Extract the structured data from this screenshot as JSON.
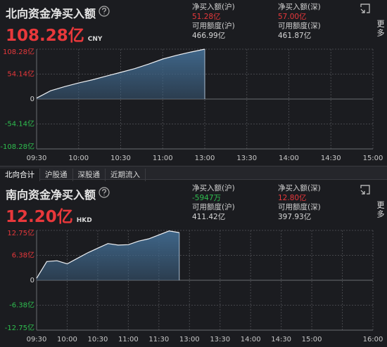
{
  "chart_data": [
    {
      "type": "area",
      "title": "北向资金净买入额",
      "total": "108.28亿",
      "currency": "CNY",
      "more": "更多",
      "stats": [
        {
          "label": "净买入额(沪)",
          "value": "51.28亿",
          "color": "#e8383b"
        },
        {
          "label": "净买入额(深)",
          "value": "57.00亿",
          "color": "#e8383b"
        },
        {
          "label": "可用额度(沪)",
          "value": "466.99亿",
          "color": "#d8d8d8"
        },
        {
          "label": "可用额度(深)",
          "value": "461.87亿",
          "color": "#d8d8d8"
        }
      ],
      "categories": [
        "09:30",
        "10:00",
        "10:30",
        "11:00",
        "13:00",
        "13:30",
        "14:00",
        "14:30",
        "15:00"
      ],
      "x": [
        "09:30",
        "09:40",
        "09:50",
        "10:00",
        "10:10",
        "10:20",
        "10:30",
        "10:40",
        "10:50",
        "11:00",
        "11:10",
        "11:20",
        "11:30"
      ],
      "values": [
        2,
        18,
        27,
        35,
        42,
        50,
        58,
        66,
        76,
        87,
        95,
        102,
        108.28
      ],
      "color": "#eef1f5",
      "fill": "#3f6689",
      "ylim": [
        -108.28,
        108.28
      ],
      "yticks": [
        {
          "value": 108.28,
          "label": "108.28亿"
        },
        {
          "value": 54.14,
          "label": "54.14亿"
        },
        0,
        {
          "value": -54.14,
          "label": "-54.14亿"
        },
        {
          "value": -108.28,
          "label": "-108.28亿"
        }
      ],
      "grid": true
    },
    {
      "type": "area",
      "title": "南向资金净买入额",
      "total": "12.20亿",
      "currency": "HKD",
      "more": "更多",
      "stats": [
        {
          "label": "净买入额(沪)",
          "value": "-5947万",
          "color": "#2fbf4f"
        },
        {
          "label": "净买入额(深)",
          "value": "12.80亿",
          "color": "#e8383b"
        },
        {
          "label": "可用额度(沪)",
          "value": "411.42亿",
          "color": "#d8d8d8"
        },
        {
          "label": "可用额度(深)",
          "value": "397.93亿",
          "color": "#d8d8d8"
        }
      ],
      "categories": [
        "09:30",
        "10:00",
        "10:30",
        "11:00",
        "11:30",
        "13:00",
        "13:30",
        "14:00",
        "14:30",
        "15:00",
        null,
        "16:00"
      ],
      "x": [
        "09:30",
        "09:40",
        "09:50",
        "10:00",
        "10:10",
        "10:20",
        "10:30",
        "10:40",
        "10:50",
        "11:00",
        "11:10",
        "11:20",
        "11:30",
        "11:40",
        "11:50"
      ],
      "values": [
        0.5,
        4.8,
        5.0,
        4.2,
        5.6,
        7.0,
        8.2,
        9.4,
        9.0,
        9.1,
        10.0,
        10.6,
        11.6,
        12.6,
        12.2
      ],
      "color": "#eef1f5",
      "fill": "#3f6689",
      "ylim": [
        -12.75,
        12.75
      ],
      "yticks": [
        {
          "value": 12.75,
          "label": "12.75亿"
        },
        {
          "value": 6.38,
          "label": "6.38亿"
        },
        0,
        {
          "value": -6.38,
          "label": "-6.38亿"
        },
        {
          "value": -12.75,
          "label": "-12.75亿"
        }
      ],
      "grid": true
    }
  ],
  "tabs": [
    "北向合计",
    "沪股通",
    "深股通",
    "近期流入"
  ]
}
